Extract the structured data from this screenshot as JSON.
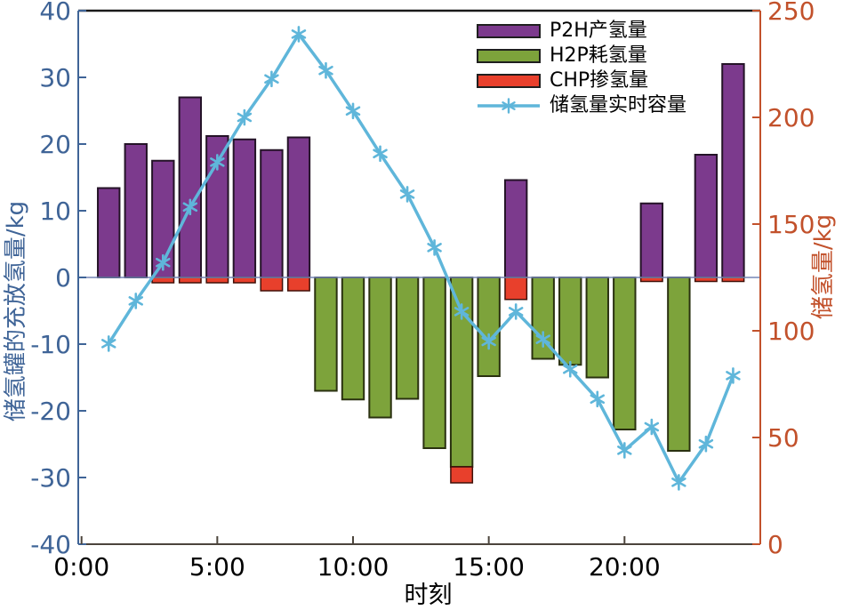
{
  "chart_data": {
    "type": "bar",
    "title": "",
    "x_axis": {
      "label": "时刻",
      "tick_labels": [
        "0:00",
        "5:00",
        "10:00",
        "15:00",
        "20:00"
      ],
      "tick_hours": [
        0,
        5,
        10,
        15,
        20
      ],
      "range_hours": [
        -0.15,
        25.05
      ]
    },
    "left_axis": {
      "label": "储氢罐的充放氢量/kg",
      "min": -40,
      "max": 40,
      "tick_values": [
        40,
        30,
        20,
        10,
        0,
        -10,
        -20,
        -30,
        -40
      ],
      "tick_labels": [
        "40",
        "30",
        "20",
        "10",
        "0",
        "-10",
        "-20",
        "-30",
        "-40"
      ]
    },
    "right_axis": {
      "label": "储氢量/kg",
      "min": 0,
      "max": 250,
      "tick_values": [
        250,
        200,
        150,
        100,
        50,
        0
      ],
      "tick_labels": [
        "250",
        "200",
        "150",
        "100",
        "50",
        "0"
      ]
    },
    "hours": [
      1,
      2,
      3,
      4,
      5,
      6,
      7,
      8,
      9,
      10,
      11,
      12,
      13,
      14,
      15,
      16,
      17,
      18,
      19,
      20,
      21,
      22,
      23,
      24
    ],
    "series": [
      {
        "name": "P2H产氢量",
        "type": "bar",
        "axis": "left",
        "values": [
          13.4,
          20,
          17.5,
          27,
          21.2,
          20.7,
          19.1,
          21,
          0,
          0,
          0,
          0,
          0,
          0,
          0,
          14.6,
          0,
          0,
          0,
          0,
          11.1,
          0,
          18.4,
          32
        ]
      },
      {
        "name": "H2P耗氢量",
        "type": "bar",
        "axis": "left",
        "values": [
          0,
          0,
          0,
          0,
          0,
          0,
          0,
          0,
          -17,
          -18.3,
          -21,
          -18.2,
          -25.6,
          -28.4,
          -14.8,
          0,
          -12.2,
          -13.1,
          -15,
          -22.8,
          0,
          -26,
          0,
          0
        ]
      },
      {
        "name": "CHP掺氢量",
        "type": "bar",
        "axis": "left",
        "values": [
          0,
          0,
          -0.8,
          -0.8,
          -0.8,
          -0.8,
          -2,
          -2,
          0,
          0,
          0,
          0,
          0,
          -2.4,
          0,
          -3.3,
          0,
          0,
          0,
          0,
          -0.6,
          0,
          -0.6,
          -0.6
        ]
      },
      {
        "name": "储氢量实时容量",
        "type": "line",
        "axis": "right",
        "values": [
          94,
          114,
          132,
          158,
          179,
          200,
          218,
          239,
          222,
          203,
          183,
          164,
          139,
          109,
          95,
          109,
          96,
          82,
          68,
          44,
          55,
          29,
          47,
          79
        ]
      }
    ],
    "grid": false,
    "legend_position": "upper-center-right",
    "colors": {
      "p2h_fill": "#7c3a8d",
      "p2h_stroke": "#241327",
      "h2p_fill": "#7da33b",
      "h2p_stroke": "#2a3110",
      "chp_fill": "#e8402c",
      "chp_stroke": "#401008",
      "storage_line": "#5fb6da",
      "left_axis": "#3f6497",
      "right_axis": "#c2512b",
      "x_axis_text": "#000000",
      "top_spine": "#1a1a1a",
      "bottom_spine": "#4c443c",
      "zero_line": "#7585b5"
    }
  },
  "legend": {
    "items": [
      {
        "label": "P2H产氢量"
      },
      {
        "label": "H2P耗氢量"
      },
      {
        "label": "CHP掺氢量"
      },
      {
        "label": "储氢量实时容量"
      }
    ]
  }
}
